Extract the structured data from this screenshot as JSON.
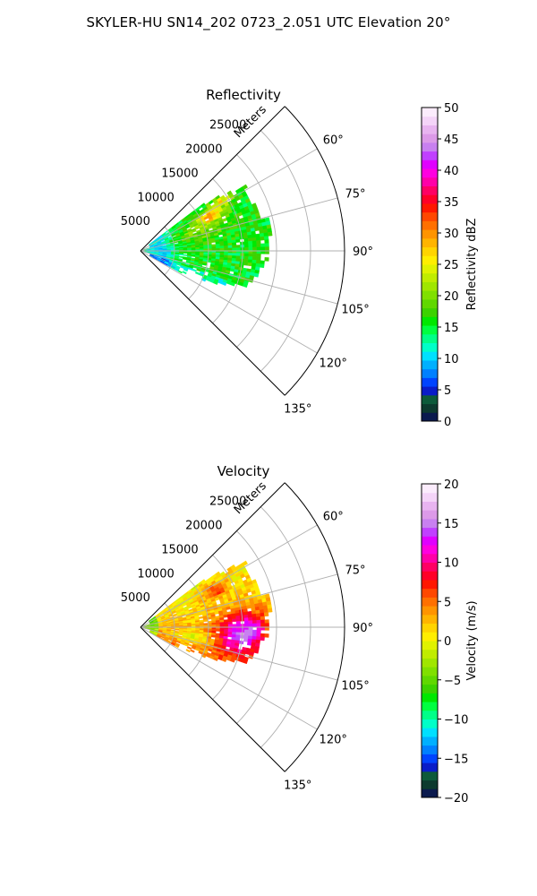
{
  "suptitle": "SKYLER-HU  SN14_202  0723_2.051 UTC Elevation 20°",
  "chart_data": [
    {
      "type": "heatmap",
      "projection": "polar-sector",
      "title": "Reflectivity",
      "r_axis_label": "Meters",
      "r_ticks": [
        5000,
        10000,
        15000,
        20000,
        25000
      ],
      "r_tick_labels": [
        "5000",
        "10000",
        "15000",
        "20000",
        "25000"
      ],
      "r_max": 30000,
      "theta_range_deg": [
        45,
        135
      ],
      "theta_ticks_deg": [
        60,
        75,
        90,
        105,
        120,
        135
      ],
      "theta_tick_labels": [
        "60°",
        "75°",
        "90°",
        "105°",
        "120°",
        "135°"
      ],
      "grid": true,
      "colorbar": {
        "label": "Reflectivity dBZ",
        "min": 0,
        "max": 50,
        "ticks": [
          0,
          5,
          10,
          15,
          20,
          25,
          30,
          35,
          40,
          45,
          50
        ],
        "tick_labels": [
          "0",
          "5",
          "10",
          "15",
          "20",
          "25",
          "30",
          "35",
          "40",
          "45",
          "50"
        ],
        "colors": [
          "#0b1a4e",
          "#0d3a2e",
          "#0d5a3a",
          "#0a1cc8",
          "#0044ff",
          "#0080ff",
          "#00b0ff",
          "#00e0ff",
          "#00ffc8",
          "#00ff88",
          "#00ff40",
          "#00e800",
          "#3cd200",
          "#60d800",
          "#80e000",
          "#a0e600",
          "#c0ec00",
          "#e0f200",
          "#ffee00",
          "#ffd400",
          "#ffb400",
          "#ff9400",
          "#ff7000",
          "#ff4800",
          "#ff1800",
          "#ff0028",
          "#ff0064",
          "#ff00a8",
          "#ff00e0",
          "#e000ff",
          "#c040ff",
          "#c880f0",
          "#dc9ae8",
          "#e8b4f0",
          "#f4d4f8",
          "#fbecfc"
        ]
      },
      "data_extent_m": [
        0,
        20000
      ],
      "data_extent_deg": [
        53,
        118
      ],
      "value_range_observed": [
        3,
        36
      ]
    },
    {
      "type": "heatmap",
      "projection": "polar-sector",
      "title": "Velocity",
      "r_axis_label": "Meters",
      "r_ticks": [
        5000,
        10000,
        15000,
        20000,
        25000
      ],
      "r_tick_labels": [
        "5000",
        "10000",
        "15000",
        "20000",
        "25000"
      ],
      "r_max": 30000,
      "theta_range_deg": [
        45,
        135
      ],
      "theta_ticks_deg": [
        60,
        75,
        90,
        105,
        120,
        135
      ],
      "theta_tick_labels": [
        "60°",
        "75°",
        "90°",
        "105°",
        "120°",
        "135°"
      ],
      "grid": true,
      "colorbar": {
        "label": "Velocity (m/s)",
        "min": -20,
        "max": 20,
        "ticks": [
          -20,
          -15,
          -10,
          -5,
          0,
          5,
          10,
          15,
          20
        ],
        "tick_labels": [
          "−20",
          "−15",
          "−10",
          "−5",
          "0",
          "5",
          "10",
          "15",
          "20"
        ],
        "colors": [
          "#0b1a4e",
          "#0d3a2e",
          "#0d5a3a",
          "#0a1cc8",
          "#0044ff",
          "#0080ff",
          "#00b0ff",
          "#00e0ff",
          "#00ffc8",
          "#00ff88",
          "#00ff40",
          "#00e800",
          "#3cd200",
          "#60d800",
          "#80e000",
          "#a0e600",
          "#c0ec00",
          "#e0f200",
          "#ffee00",
          "#ffd400",
          "#ffb400",
          "#ff9400",
          "#ff7000",
          "#ff4800",
          "#ff1800",
          "#ff0028",
          "#ff0064",
          "#ff00a8",
          "#ff00e0",
          "#e000ff",
          "#c040ff",
          "#c880f0",
          "#dc9ae8",
          "#e8b4f0",
          "#f4d4f8",
          "#fbecfc"
        ]
      },
      "data_extent_m": [
        0,
        20000
      ],
      "data_extent_deg": [
        53,
        118
      ],
      "value_range_observed": [
        -8,
        17
      ]
    }
  ]
}
